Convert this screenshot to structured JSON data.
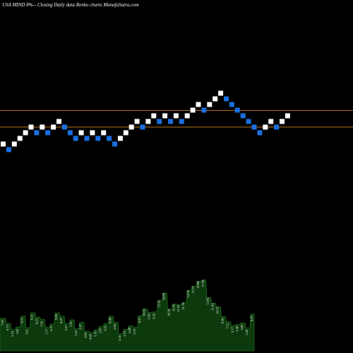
{
  "header": {
    "title": "USA MIND 8%-- Closing Daily data Renko charts MunafaSutra.com"
  },
  "chart_data": {
    "type": "renko",
    "title": "USA MIND 8%-- Closing Daily data Renko charts MunafaSutra.com",
    "xlabel": "",
    "ylabel": "",
    "grid": false,
    "colors": {
      "background": "#000000",
      "up_brick": "#ffffff",
      "down_brick": "#1a6fe0",
      "resistance_line": "#b8761e",
      "volume_fill": "#0c3a0c",
      "volume_line": "#1f6d1f"
    },
    "horizontal_levels": [
      26.95,
      24.0
    ],
    "price_range": [
      -15,
      40
    ],
    "bricks": [
      {
        "level": 21,
        "dir": "up"
      },
      {
        "level": 20,
        "dir": "down"
      },
      {
        "level": 21,
        "dir": "up"
      },
      {
        "level": 22,
        "dir": "up"
      },
      {
        "level": 23,
        "dir": "up"
      },
      {
        "level": 24,
        "dir": "up"
      },
      {
        "level": 23,
        "dir": "down"
      },
      {
        "level": 24,
        "dir": "up"
      },
      {
        "level": 23,
        "dir": "down"
      },
      {
        "level": 24,
        "dir": "up"
      },
      {
        "level": 25,
        "dir": "up"
      },
      {
        "level": 24,
        "dir": "down"
      },
      {
        "level": 23,
        "dir": "down"
      },
      {
        "level": 22,
        "dir": "down"
      },
      {
        "level": 23,
        "dir": "up"
      },
      {
        "level": 22,
        "dir": "down"
      },
      {
        "level": 23,
        "dir": "up"
      },
      {
        "level": 22,
        "dir": "down"
      },
      {
        "level": 23,
        "dir": "up"
      },
      {
        "level": 22,
        "dir": "down"
      },
      {
        "level": 21,
        "dir": "down"
      },
      {
        "level": 22,
        "dir": "up"
      },
      {
        "level": 23,
        "dir": "up"
      },
      {
        "level": 24,
        "dir": "up"
      },
      {
        "level": 25,
        "dir": "up"
      },
      {
        "level": 24,
        "dir": "down"
      },
      {
        "level": 25,
        "dir": "up"
      },
      {
        "level": 26,
        "dir": "up"
      },
      {
        "level": 25,
        "dir": "down"
      },
      {
        "level": 26,
        "dir": "up"
      },
      {
        "level": 25,
        "dir": "down"
      },
      {
        "level": 26,
        "dir": "up"
      },
      {
        "level": 25,
        "dir": "down"
      },
      {
        "level": 26,
        "dir": "up"
      },
      {
        "level": 27,
        "dir": "up"
      },
      {
        "level": 28,
        "dir": "up"
      },
      {
        "level": 27,
        "dir": "down"
      },
      {
        "level": 28,
        "dir": "up"
      },
      {
        "level": 29,
        "dir": "up"
      },
      {
        "level": 30,
        "dir": "up"
      },
      {
        "level": 29,
        "dir": "down"
      },
      {
        "level": 28,
        "dir": "down"
      },
      {
        "level": 27,
        "dir": "down"
      },
      {
        "level": 26,
        "dir": "down"
      },
      {
        "level": 25,
        "dir": "down"
      },
      {
        "level": 24,
        "dir": "down"
      },
      {
        "level": 23,
        "dir": "down"
      },
      {
        "level": 24,
        "dir": "up"
      },
      {
        "level": 25,
        "dir": "up"
      },
      {
        "level": 24,
        "dir": "down"
      },
      {
        "level": 25,
        "dir": "up"
      },
      {
        "level": 26,
        "dir": "up"
      }
    ],
    "volume_labels": [
      "7.93",
      "6.72",
      "5.19",
      "5.81",
      "8.51",
      "5.65",
      "9.31",
      "8.22",
      "7.65",
      "5.77",
      "6.57",
      "9.28",
      "8.47",
      "6.67",
      "7.55",
      "5.41",
      "6.97",
      "4.84",
      "4.49",
      "5.16",
      "5.97",
      "6.61",
      "8.49",
      "6.93",
      "4.16",
      "5.23",
      "6.09",
      "5.72",
      "8.57",
      "10.23",
      "9.39",
      "9.52",
      "12.33",
      "14.09",
      "10.18",
      "11.41",
      "11.23",
      "11.79",
      "14.76",
      "15.77",
      "16.98",
      "17.29",
      "13.02",
      "11.62",
      "10.73",
      "8.38",
      "7.12",
      "6.17",
      "6.46",
      "6.82",
      "5.59",
      "8.97"
    ]
  }
}
